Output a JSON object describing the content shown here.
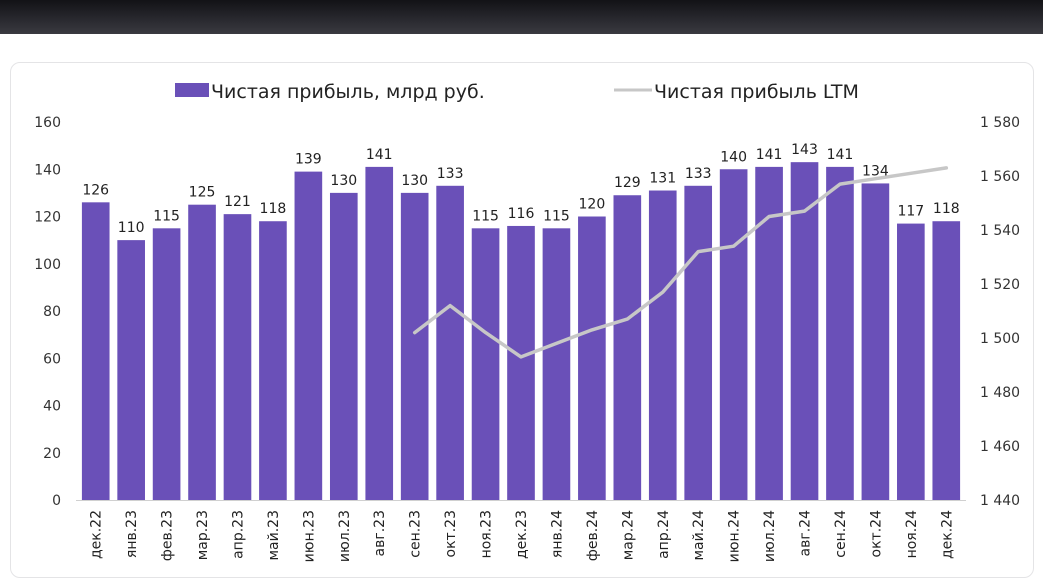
{
  "chart_data": {
    "type": "bar+line",
    "categories": [
      "дек.22",
      "янв.23",
      "фев.23",
      "мар.23",
      "апр.23",
      "май.23",
      "июн.23",
      "июл.23",
      "авг.23",
      "сен.23",
      "окт.23",
      "ноя.23",
      "дек.23",
      "янв.24",
      "фев.24",
      "мар.24",
      "апр.24",
      "май.24",
      "июн.24",
      "июл.24",
      "авг.24",
      "сен.24",
      "окт.24",
      "ноя.24",
      "дек.24"
    ],
    "series": [
      {
        "name": "Чистая прибыль, млрд руб.",
        "type": "bar",
        "axis": "left",
        "color": "#6a50b8",
        "values": [
          126,
          110,
          115,
          125,
          121,
          118,
          139,
          130,
          141,
          130,
          133,
          115,
          116,
          115,
          120,
          129,
          131,
          133,
          140,
          141,
          143,
          141,
          134,
          117,
          118
        ]
      },
      {
        "name": "Чистая прибыль LTM",
        "type": "line",
        "axis": "right",
        "color": "#c7c7c7",
        "values": [
          null,
          null,
          null,
          null,
          null,
          null,
          null,
          null,
          null,
          1502,
          1512,
          1502,
          1493,
          1498,
          1503,
          1507,
          1517,
          1532,
          1534,
          1545,
          1547,
          1557,
          1559,
          1561,
          1563
        ]
      }
    ],
    "y_left": {
      "ylim": [
        0,
        160
      ],
      "ticks": [
        "0",
        "20",
        "40",
        "60",
        "80",
        "100",
        "120",
        "140",
        "160"
      ]
    },
    "y_right": {
      "ylim": [
        1440,
        1580
      ],
      "ticks": [
        "1 440",
        "1 460",
        "1 480",
        "1 500",
        "1 520",
        "1 540",
        "1 560",
        "1 580"
      ]
    },
    "grid": false,
    "legend_position": "top-center"
  }
}
